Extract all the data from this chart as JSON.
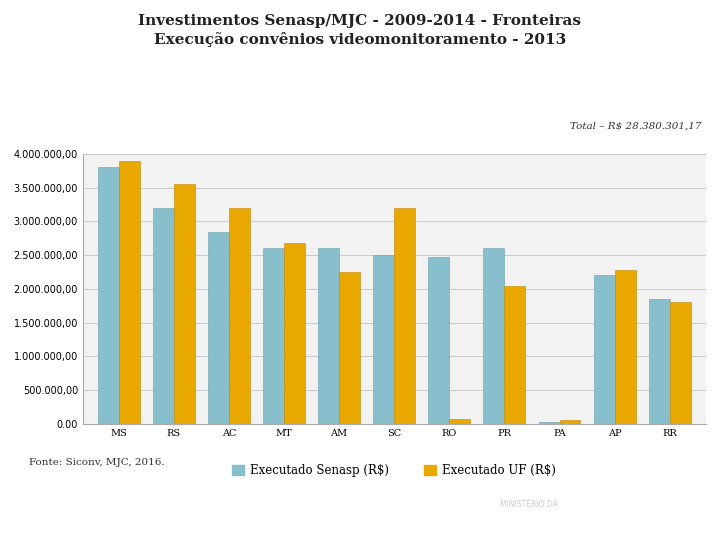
{
  "title1": "Investimentos Senasp/MJC - 2009-2014 - Fronteiras",
  "title2": "Execução convênios videomonitoramento - 2013",
  "total_label": "Total – R$ 28.380.301,17",
  "categories": [
    "MS",
    "RS",
    "AC",
    "MT",
    "AM",
    "SC",
    "RO",
    "PR",
    "PA",
    "AP",
    "RR"
  ],
  "senasp": [
    3800000,
    3200000,
    2850000,
    2600000,
    2600000,
    2500000,
    2480000,
    2600000,
    30000,
    2200000,
    1850000
  ],
  "uf": [
    3900000,
    3550000,
    3200000,
    2680000,
    2250000,
    3200000,
    70000,
    2050000,
    55000,
    2280000,
    1800000
  ],
  "senasp_color": "#88bfcc",
  "uf_color": "#e8a800",
  "background_color": "#ffffff",
  "ylim": [
    0,
    4000000
  ],
  "yticks": [
    0,
    500000,
    1000000,
    1500000,
    2000000,
    2500000,
    3000000,
    3500000,
    4000000
  ],
  "legend_senasp": "Executado Senasp (R$)",
  "legend_uf": "Executado UF (R$)",
  "fonte": "Fonte: Siconv, MJC, 2016.",
  "footer_color": "#1d3f5e",
  "title1_fontsize": 11,
  "title2_fontsize": 11,
  "tick_fontsize": 7,
  "legend_fontsize": 8.5
}
